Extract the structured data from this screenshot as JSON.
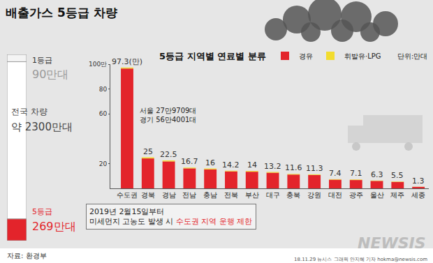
{
  "chart_data": [
    {
      "type": "bar",
      "title": "배출가스 5등급 차량",
      "total": {
        "label": "전국 차량",
        "value": 2300,
        "value_label": "약 2300만대",
        "color": "#ffffff"
      },
      "segments": [
        {
          "name": "1등급",
          "value": 90,
          "value_label": "90만대",
          "color": "#f4f4f4"
        },
        {
          "name": "5등급",
          "value": 269,
          "value_label": "269만대",
          "color": "#e3242b"
        }
      ],
      "ylim": [
        0,
        2300
      ],
      "tick_labels": false
    },
    {
      "type": "bar",
      "subtitle": "5등급 지역별 연료별 분류",
      "unit_label": "단위:만대",
      "categories": [
        "수도권",
        "경북",
        "경남",
        "전남",
        "충남",
        "전북",
        "부산",
        "대구",
        "충북",
        "강원",
        "대전",
        "광주",
        "울산",
        "제주",
        "세종"
      ],
      "series": [
        {
          "name": "경유",
          "color": "#e3242b",
          "values": [
            96.5,
            24.1,
            21.7,
            16.1,
            15.3,
            13.7,
            13.4,
            12.6,
            11.1,
            10.8,
            7.0,
            6.7,
            6.0,
            5.2,
            1.2
          ]
        },
        {
          "name": "휘발유·LPG",
          "color": "#f2dc2e",
          "values": [
            0.8,
            0.9,
            0.8,
            0.6,
            0.7,
            0.5,
            0.6,
            0.6,
            0.5,
            0.5,
            0.4,
            0.4,
            0.3,
            0.3,
            0.1
          ]
        }
      ],
      "totals": [
        97.3,
        25,
        22.5,
        16.7,
        16,
        14.2,
        14,
        13.2,
        11.6,
        11.3,
        7.4,
        7.1,
        6.3,
        5.5,
        1.3
      ],
      "total_labels": [
        "97.3(만)",
        "25",
        "22.5",
        "16.7",
        "16",
        "14.2",
        "14",
        "13.2",
        "11.6",
        "11.3",
        "7.4",
        "7.1",
        "6.3",
        "5.5",
        "1.3"
      ],
      "stacked": true,
      "legend": "top right",
      "grid": false,
      "ylim": [
        0,
        100
      ],
      "yticks": [
        20,
        60,
        80,
        {
          "value": 100,
          "label": "100만"
        }
      ],
      "annotations": [
        {
          "category": "수도권",
          "text_lines": [
            "서울 27만9709대",
            "경기 56만4001대"
          ]
        }
      ],
      "note": {
        "lines": [
          [
            {
              "text": "2019년 2월15일부터"
            }
          ],
          [
            {
              "text": "미세먼지 고농도 발생 시 "
            },
            {
              "text": "수도권 지역 운행 제한",
              "color": "#e3242b"
            }
          ]
        ]
      },
      "source": "자료: 환경부",
      "credit": "18.11.29 뉴시스 그래픽 안지혜 기자 hokma@newsis.com",
      "watermark": "NEWSIS"
    }
  ]
}
